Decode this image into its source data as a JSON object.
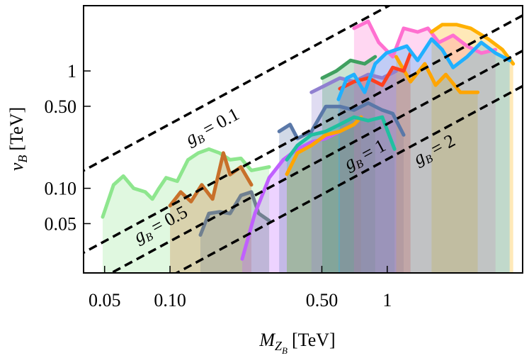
{
  "chart_data": {
    "type": "line",
    "log_x": true,
    "log_y": true,
    "filled_areas": true,
    "x_label": {
      "symbol": "M",
      "sub": "Z",
      "subsub": "B",
      "unit": "[TeV]"
    },
    "y_label": {
      "symbol": "v",
      "sub": "B",
      "unit": "[TeV]"
    },
    "xlim": [
      0.04,
      4.2
    ],
    "ylim": [
      0.019,
      3.6
    ],
    "xticks": [
      0.05,
      {
        "value": 0.1,
        "label": "0.10"
      },
      {
        "value": 0.5,
        "label": "0.50"
      },
      1
    ],
    "yticks": [
      0.05,
      {
        "value": 0.1,
        "label": "0.10"
      },
      {
        "value": 0.5,
        "label": "0.50"
      },
      1
    ],
    "coupling_symbol": "g",
    "coupling_sub": "B",
    "coupling_lines": [
      {
        "g": 0.1,
        "label": "= 0.1"
      },
      {
        "g": 0.5,
        "label": "= 0.5"
      },
      {
        "g": 1,
        "label": "= 1"
      },
      {
        "g": 2,
        "label": "= 2"
      }
    ],
    "series": [
      {
        "color": "#8ee68e",
        "x": [
          0.049,
          0.055,
          0.061,
          0.068,
          0.077,
          0.083,
          0.089,
          0.096,
          0.108,
          0.121,
          0.135,
          0.151,
          0.169,
          0.189,
          0.212,
          0.237,
          0.286
        ],
        "values": [
          0.057,
          0.107,
          0.127,
          0.1,
          0.093,
          0.081,
          0.1,
          0.123,
          0.115,
          0.175,
          0.2,
          0.216,
          0.2,
          0.175,
          0.18,
          0.142,
          0.152
        ]
      },
      {
        "color": "#c8702a",
        "x": [
          0.1,
          0.112,
          0.125,
          0.14,
          0.157,
          0.176,
          0.189,
          0.212,
          0.237
        ],
        "values": [
          0.071,
          0.093,
          0.077,
          0.107,
          0.081,
          0.2,
          0.131,
          0.152,
          0.107
        ]
      },
      {
        "color": "#708090",
        "x": [
          0.138,
          0.151,
          0.169,
          0.189,
          0.212,
          0.237,
          0.256,
          0.286
        ],
        "values": [
          0.04,
          0.061,
          0.063,
          0.061,
          0.087,
          0.093,
          0.061,
          0.053
        ]
      },
      {
        "color": "#c060ff",
        "x": [
          0.215,
          0.246,
          0.286,
          0.332,
          0.386,
          0.448,
          0.521,
          0.605
        ],
        "values": [
          0.025,
          0.061,
          0.123,
          0.175,
          0.216,
          0.248,
          0.266,
          0.305
        ]
      },
      {
        "color": "#5a78a8",
        "x": [
          0.318,
          0.357,
          0.386,
          0.448,
          0.521,
          0.605,
          0.703,
          0.817,
          0.949,
          1.06,
          1.19
        ],
        "values": [
          0.305,
          0.35,
          0.266,
          0.305,
          0.498,
          0.498,
          0.464,
          0.533,
          0.464,
          0.433,
          0.285
        ]
      },
      {
        "color": "#ffa500",
        "x": [
          0.345,
          0.386,
          0.448,
          0.521,
          0.605,
          0.703,
          0.758
        ],
        "values": [
          0.132,
          0.2,
          0.232,
          0.285,
          0.305,
          0.35,
          0.404
        ]
      },
      {
        "color": "#20c0a0",
        "x": [
          0.345,
          0.386,
          0.448,
          0.521,
          0.605,
          0.703,
          0.817,
          0.949,
          1.08
        ],
        "values": [
          0.175,
          0.232,
          0.285,
          0.305,
          0.35,
          0.404,
          0.377,
          0.404,
          0.216
        ]
      },
      {
        "color": "#9080d0",
        "x": [
          0.448,
          0.521,
          0.605,
          0.703,
          0.817,
          0.949,
          1.1
        ],
        "values": [
          0.658,
          0.757,
          0.87,
          0.81,
          0.933,
          0.87,
          1
        ]
      },
      {
        "color": "#40a060",
        "x": [
          0.502,
          0.583,
          0.677,
          0.787,
          0.88
        ],
        "values": [
          0.87,
          1,
          1.23,
          1.15,
          1.32
        ]
      },
      {
        "color": "#ff70d0",
        "x": [
          0.703,
          0.817,
          0.914,
          1.06,
          1.19,
          1.38,
          1.54,
          1.73,
          2.01,
          2.33,
          2.71,
          3.15
        ],
        "values": [
          2.31,
          2.65,
          1.75,
          1.32,
          2.31,
          2.15,
          2.31,
          1.75,
          2.01,
          1.63,
          1.42,
          1.52
        ]
      },
      {
        "color": "#ffa500",
        "x": [
          1.1,
          1.28,
          1.49,
          1.67,
          1.86,
          2.17,
          2.61
        ],
        "values": [
          1.32,
          0.81,
          1.15,
          0.757,
          0.933,
          0.658,
          0.658
        ]
      },
      {
        "color": "#ffb000",
        "x": [
          1.6,
          1.79,
          2.09,
          2.42,
          2.92,
          3.39,
          3.8
        ],
        "values": [
          2.15,
          2.48,
          2.48,
          2.31,
          1.87,
          1.52,
          1.15
        ]
      },
      {
        "color": "#ff4020",
        "x": [
          0.605,
          0.703,
          0.817,
          0.949,
          1.06,
          1.19,
          1.28
        ],
        "values": [
          0.706,
          0.81,
          0.87,
          0.757,
          1.07,
          1,
          1.42
        ]
      },
      {
        "color": "#20b0ff",
        "x": [
          0.596,
          0.652,
          0.703,
          0.787,
          0.88,
          0.99,
          1.1,
          1.23,
          1.38,
          1.6,
          1.79,
          2.01,
          2.33,
          2.71,
          3.15,
          3.66
        ],
        "values": [
          0.572,
          0.87,
          0.933,
          0.658,
          1.15,
          1.42,
          1.52,
          1.63,
          1.23,
          1.87,
          1.52,
          1.07,
          1.32,
          1.75,
          1.42,
          1.23
        ]
      }
    ]
  }
}
